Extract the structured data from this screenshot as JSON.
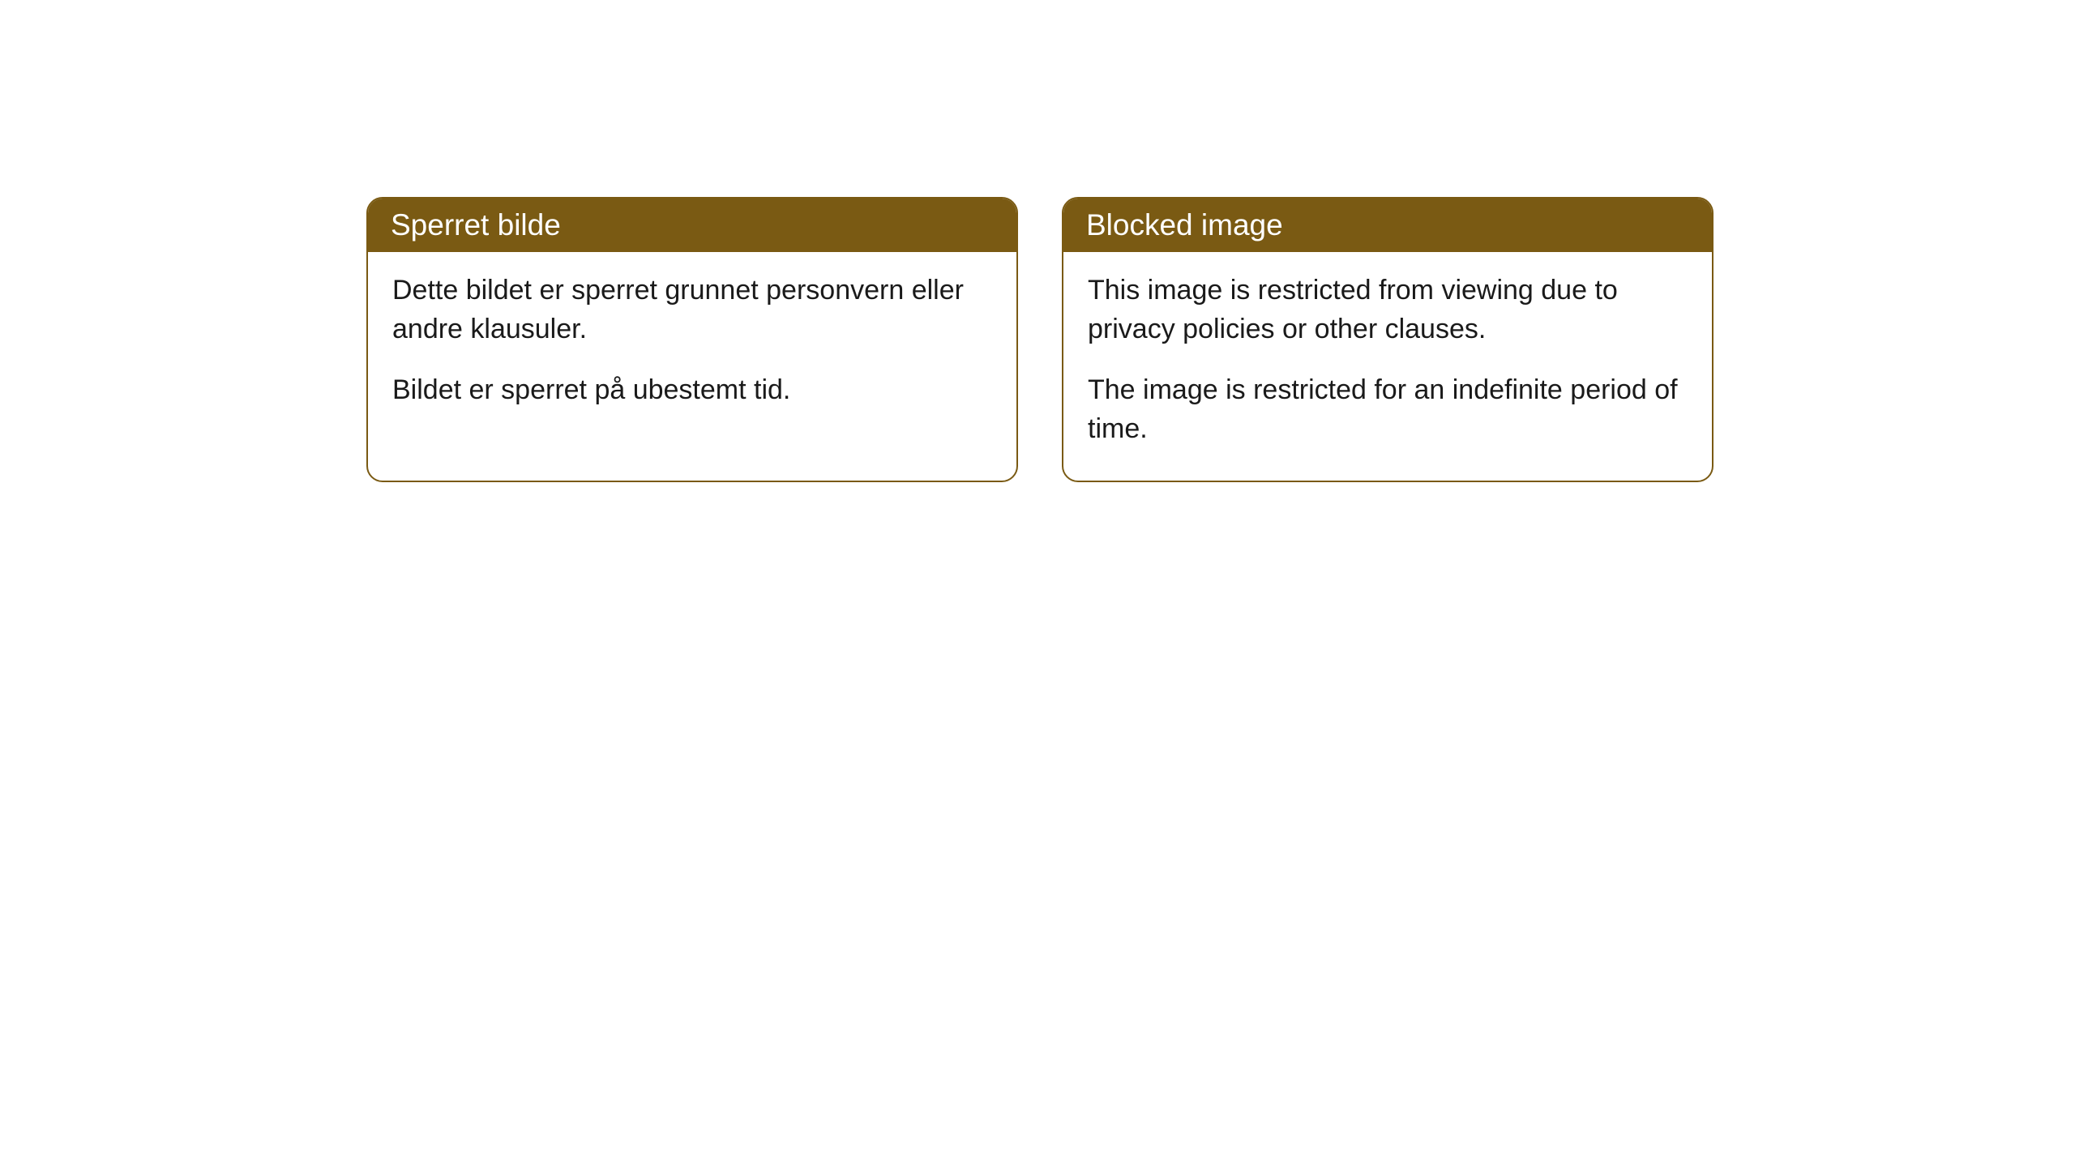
{
  "styling": {
    "header_background": "#7a5a13",
    "header_text_color": "#ffffff",
    "border_color": "#7a5a13",
    "body_background": "#ffffff",
    "body_text_color": "#1a1a1a",
    "border_radius": 20,
    "header_fontsize": 37,
    "body_fontsize": 34
  },
  "cards": {
    "norwegian": {
      "title": "Sperret bilde",
      "paragraph1": "Dette bildet er sperret grunnet personvern eller andre klausuler.",
      "paragraph2": "Bildet er sperret på ubestemt tid."
    },
    "english": {
      "title": "Blocked image",
      "paragraph1": "This image is restricted from viewing due to privacy policies or other clauses.",
      "paragraph2": "The image is restricted for an indefinite period of time."
    }
  }
}
